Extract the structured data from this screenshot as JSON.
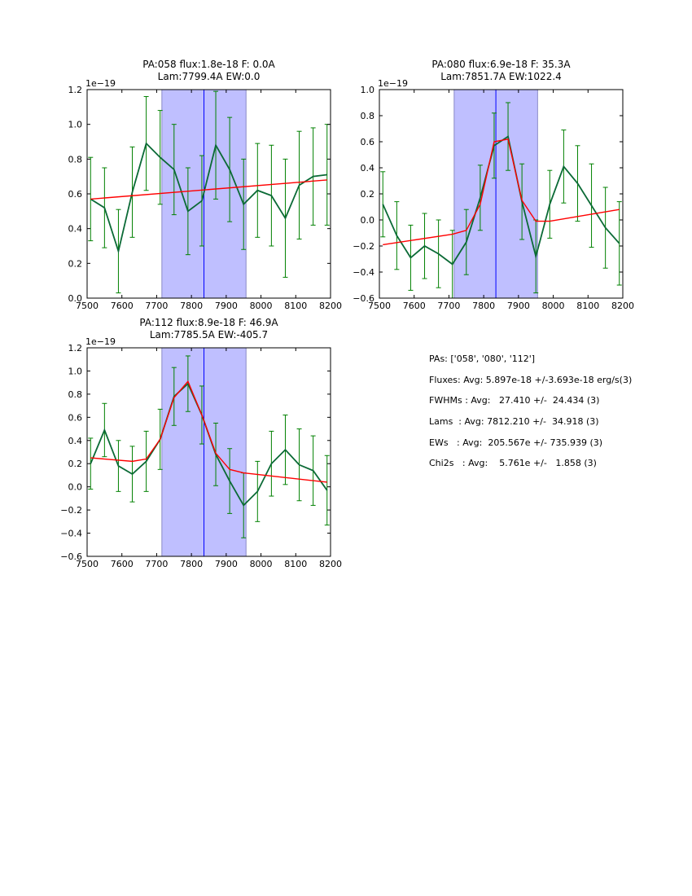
{
  "colors": {
    "data_line": "#0b6a36",
    "errorbar": "#008000",
    "fit": "#ff0000",
    "band_fill": "#bfbfff",
    "band_edge": "#8a8ac8",
    "center_line": "#0000ff"
  },
  "chart_data": [
    {
      "type": "line",
      "title": [
        "PA:058 flux:1.8e-18 F: 0.0A",
        "Lam:7799.4A EW:0.0"
      ],
      "offset_label": "1e−19",
      "xlim": [
        7500,
        8200
      ],
      "ylim": [
        0.0,
        1.2
      ],
      "xticks": [
        7500,
        7600,
        7700,
        7800,
        7900,
        8000,
        8100,
        8200
      ],
      "yticks": [
        0.0,
        0.2,
        0.4,
        0.6,
        0.8,
        1.0,
        1.2
      ],
      "band": [
        7715,
        7957
      ],
      "center": 7836,
      "x": [
        7510,
        7550,
        7590,
        7630,
        7670,
        7710,
        7750,
        7790,
        7830,
        7870,
        7910,
        7950,
        7990,
        8030,
        8070,
        8110,
        8150,
        8190
      ],
      "y": [
        0.57,
        0.52,
        0.27,
        0.61,
        0.89,
        0.81,
        0.74,
        0.5,
        0.56,
        0.88,
        0.74,
        0.54,
        0.62,
        0.59,
        0.46,
        0.65,
        0.7,
        0.71
      ],
      "yerr": [
        0.24,
        0.23,
        0.24,
        0.26,
        0.27,
        0.27,
        0.26,
        0.25,
        0.26,
        0.31,
        0.3,
        0.26,
        0.27,
        0.29,
        0.34,
        0.31,
        0.28,
        0.29
      ],
      "fit": {
        "x": [
          7510,
          8190
        ],
        "y": [
          0.57,
          0.68
        ]
      }
    },
    {
      "type": "line",
      "title": [
        "PA:080 flux:6.9e-18 F: 35.3A",
        "Lam:7851.7A EW:1022.4"
      ],
      "offset_label": "1e−19",
      "xlim": [
        7500,
        8200
      ],
      "ylim": [
        -0.6,
        1.0
      ],
      "xticks": [
        7500,
        7600,
        7700,
        7800,
        7900,
        8000,
        8100,
        8200
      ],
      "yticks": [
        -0.6,
        -0.4,
        -0.2,
        0.0,
        0.2,
        0.4,
        0.6,
        0.8,
        1.0
      ],
      "band": [
        7715,
        7955
      ],
      "center": 7835,
      "x": [
        7510,
        7550,
        7590,
        7630,
        7670,
        7710,
        7750,
        7790,
        7830,
        7870,
        7910,
        7950,
        7990,
        8030,
        8070,
        8110,
        8150,
        8190
      ],
      "y": [
        0.12,
        -0.12,
        -0.29,
        -0.2,
        -0.26,
        -0.34,
        -0.17,
        0.17,
        0.57,
        0.64,
        0.14,
        -0.28,
        0.12,
        0.41,
        0.28,
        0.11,
        -0.06,
        -0.18
      ],
      "yerr": [
        0.25,
        0.26,
        0.25,
        0.25,
        0.26,
        0.26,
        0.25,
        0.25,
        0.25,
        0.26,
        0.29,
        0.28,
        0.26,
        0.28,
        0.29,
        0.32,
        0.31,
        0.32
      ],
      "fit": {
        "x": [
          7510,
          7710,
          7750,
          7790,
          7830,
          7870,
          7910,
          7950,
          7990,
          8190
        ],
        "y": [
          -0.19,
          -0.11,
          -0.08,
          0.12,
          0.6,
          0.62,
          0.15,
          -0.01,
          -0.01,
          0.08
        ]
      }
    },
    {
      "type": "line",
      "title": [
        "PA:112 flux:8.9e-18 F: 46.9A",
        "Lam:7785.5A EW:-405.7"
      ],
      "offset_label": "1e−19",
      "xlim": [
        7500,
        8200
      ],
      "ylim": [
        -0.6,
        1.2
      ],
      "xticks": [
        7500,
        7600,
        7700,
        7800,
        7900,
        8000,
        8100,
        8200
      ],
      "yticks": [
        -0.6,
        -0.4,
        -0.2,
        0.0,
        0.2,
        0.4,
        0.6,
        0.8,
        1.0,
        1.2
      ],
      "band": [
        7715,
        7957
      ],
      "center": 7836,
      "x": [
        7510,
        7550,
        7590,
        7630,
        7670,
        7710,
        7750,
        7790,
        7830,
        7870,
        7910,
        7950,
        7990,
        8030,
        8070,
        8110,
        8150,
        8190
      ],
      "y": [
        0.2,
        0.49,
        0.18,
        0.11,
        0.22,
        0.41,
        0.78,
        0.89,
        0.62,
        0.28,
        0.05,
        -0.16,
        -0.04,
        0.2,
        0.32,
        0.19,
        0.14,
        -0.03
      ],
      "yerr": [
        0.22,
        0.23,
        0.22,
        0.24,
        0.26,
        0.26,
        0.25,
        0.24,
        0.25,
        0.27,
        0.28,
        0.28,
        0.26,
        0.28,
        0.3,
        0.31,
        0.3,
        0.3
      ],
      "fit": {
        "x": [
          7510,
          7630,
          7670,
          7710,
          7750,
          7790,
          7830,
          7870,
          7910,
          7950,
          8190
        ],
        "y": [
          0.25,
          0.22,
          0.24,
          0.41,
          0.77,
          0.91,
          0.62,
          0.29,
          0.15,
          0.12,
          0.04
        ]
      }
    }
  ],
  "stats": [
    "PAs: ['058', '080', '112']",
    "Fluxes: Avg: 5.897e-18 +/-3.693e-18 erg/s(3)",
    "FWHMs : Avg:   27.410 +/-  24.434 (3)",
    "Lams  : Avg: 7812.210 +/-  34.918 (3)",
    "EWs   : Avg:  205.567e +/- 735.939 (3)",
    "Chi2s   : Avg:    5.761e +/-   1.858 (3)"
  ]
}
